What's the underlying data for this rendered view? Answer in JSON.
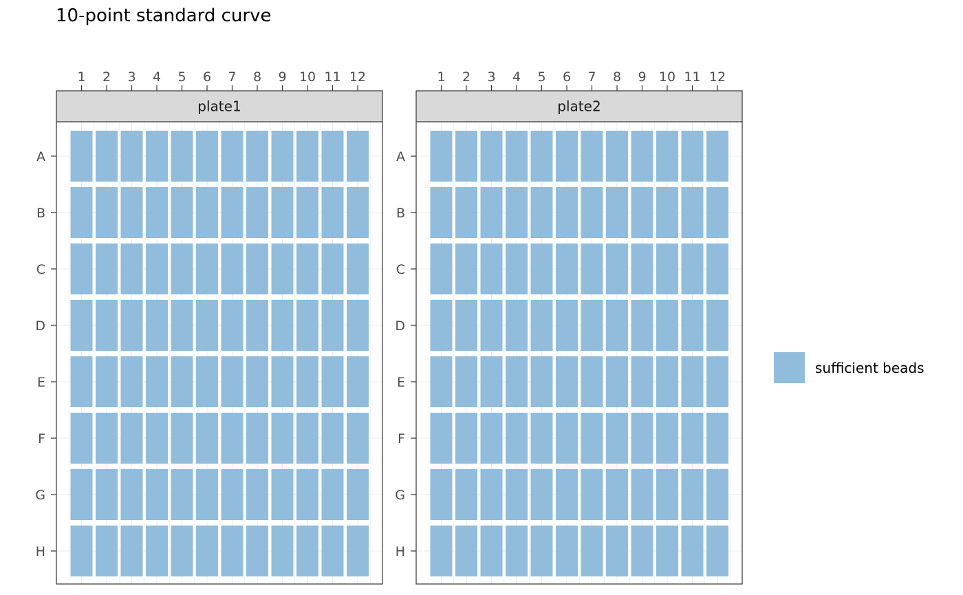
{
  "chart_data": {
    "type": "heatmap",
    "title": "10-point standard curve",
    "columns": [
      "1",
      "2",
      "3",
      "4",
      "5",
      "6",
      "7",
      "8",
      "9",
      "10",
      "11",
      "12"
    ],
    "rows": [
      "A",
      "B",
      "C",
      "D",
      "E",
      "F",
      "G",
      "H"
    ],
    "panels": [
      {
        "name": "plate1",
        "well_status": "sufficient beads"
      },
      {
        "name": "plate2",
        "well_status": "sufficient beads"
      }
    ],
    "legend": {
      "position": "right",
      "items": [
        {
          "label": "sufficient beads",
          "color": "#91bcdb"
        }
      ]
    },
    "grid": true,
    "x_axis_position": "top",
    "colors": {
      "fill": "#91bcdb",
      "strip": "#d9d9d9",
      "grid": "#ebebeb",
      "panel_border": "#333333",
      "axis_text": "#4d4d4d"
    }
  }
}
